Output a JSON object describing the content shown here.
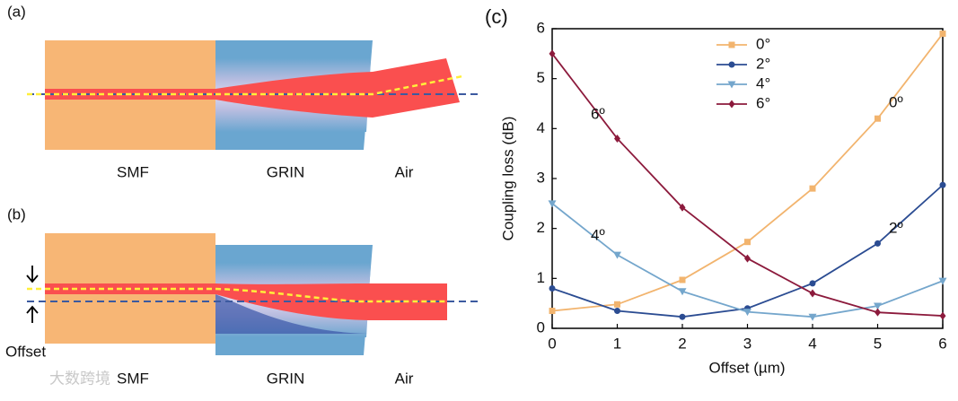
{
  "panel_a": {
    "label": "(a)",
    "regions": [
      "SMF",
      "GRIN",
      "Air"
    ]
  },
  "panel_b": {
    "label": "(b)",
    "regions": [
      "SMF",
      "GRIN",
      "Air"
    ],
    "offset_label": "Offset"
  },
  "watermark": "大数跨境",
  "chart_data": {
    "type": "line",
    "panel_label": "(c)",
    "x_label": "Offset (µm)",
    "y_label": "Coupling loss (dB)",
    "x": [
      0,
      1,
      2,
      3,
      4,
      5,
      6
    ],
    "xlim": [
      0,
      6
    ],
    "ylim": [
      0,
      6
    ],
    "xticks": [
      0,
      1,
      2,
      3,
      4,
      5,
      6
    ],
    "yticks": [
      0,
      1,
      2,
      3,
      4,
      5,
      6
    ],
    "legend": "upper center",
    "series": [
      {
        "name": "0°",
        "color": "#f2b46e",
        "marker": "square",
        "values": [
          0.35,
          0.48,
          0.97,
          1.73,
          2.8,
          4.2,
          5.9
        ]
      },
      {
        "name": "2°",
        "color": "#2b4c92",
        "marker": "circle",
        "values": [
          0.8,
          0.35,
          0.23,
          0.4,
          0.9,
          1.7,
          2.87
        ]
      },
      {
        "name": "4°",
        "color": "#74a6cc",
        "marker": "triangle",
        "values": [
          2.5,
          1.47,
          0.74,
          0.33,
          0.23,
          0.45,
          0.95
        ]
      },
      {
        "name": "6°",
        "color": "#8c1a3c",
        "marker": "diamond",
        "values": [
          5.5,
          3.8,
          2.42,
          1.4,
          0.7,
          0.32,
          0.25
        ]
      }
    ],
    "annotations": [
      "0º",
      "2º",
      "4º",
      "6º"
    ]
  }
}
